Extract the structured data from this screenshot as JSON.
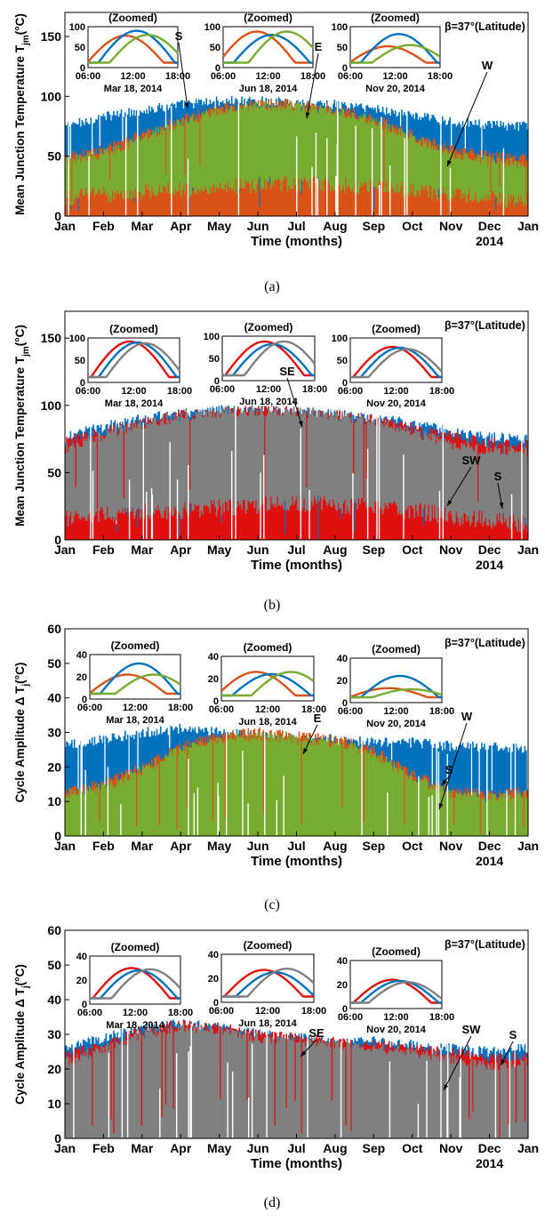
{
  "months": [
    "Jan",
    "Feb",
    "Mar",
    "Apr",
    "May",
    "Jun",
    "Jul",
    "Aug",
    "Sep",
    "Oct",
    "Nov",
    "Dec",
    "Jan"
  ],
  "year_label": "2014",
  "xlabel": "Time (months)",
  "beta_label": "β=37°(Latitude)",
  "zoom_title": "(Zoomed)",
  "zoom_hours": [
    "06:00",
    "12:00",
    "18:00"
  ],
  "zoom_dates": [
    "Mar 18, 2014",
    "Jun 18, 2014",
    "Nov 20, 2014"
  ],
  "colors": {
    "blue": "#0072BD",
    "orange": "#D95319",
    "green": "#77AC30",
    "red": "#E01010",
    "gray": "#808080"
  },
  "chart_data": [
    {
      "panel": "(a)",
      "type": "area",
      "ylabel": "Mean Junction Temperature T",
      "ylabel_sub": "jm",
      "ylabel_unit": "(°C)",
      "ylim": [
        0,
        170
      ],
      "yticks": [
        0,
        50,
        100,
        150
      ],
      "series": [
        {
          "name": "S",
          "color": "blue",
          "upper": [
            75,
            83,
            88,
            93,
            96,
            96,
            95,
            93,
            90,
            84,
            79,
            76,
            75
          ]
        },
        {
          "name": "E",
          "color": "orange",
          "upper": [
            50,
            55,
            68,
            80,
            90,
            94,
            94,
            90,
            82,
            68,
            56,
            50,
            48
          ]
        },
        {
          "name": "W",
          "color": "green",
          "upper": [
            46,
            52,
            65,
            78,
            88,
            92,
            92,
            88,
            80,
            65,
            52,
            46,
            44
          ],
          "lower": [
            15,
            18,
            20,
            22,
            24,
            26,
            27,
            26,
            24,
            22,
            18,
            15,
            12
          ]
        }
      ],
      "labels": [
        "S",
        "E",
        "W"
      ],
      "zoom_ylim": [
        0,
        100
      ],
      "zoom_yticks": [
        0,
        50,
        100
      ],
      "zoom": [
        {
          "date": "Mar 18, 2014",
          "curves": [
            {
              "color": "orange",
              "peak_hour": 11.0,
              "peak": 78
            },
            {
              "color": "blue",
              "peak_hour": 12.5,
              "peak": 90
            },
            {
              "color": "green",
              "peak_hour": 14.0,
              "peak": 80
            }
          ]
        },
        {
          "date": "Jun 18, 2014",
          "curves": [
            {
              "color": "orange",
              "peak_hour": 10.5,
              "peak": 88
            },
            {
              "color": "blue",
              "peak_hour": 12.5,
              "peak": 80
            },
            {
              "color": "green",
              "peak_hour": 14.5,
              "peak": 88
            }
          ]
        },
        {
          "date": "Nov 20, 2014",
          "curves": [
            {
              "color": "orange",
              "peak_hour": 11.0,
              "peak": 52
            },
            {
              "color": "blue",
              "peak_hour": 12.5,
              "peak": 82
            },
            {
              "color": "green",
              "peak_hour": 14.0,
              "peak": 55
            }
          ]
        }
      ]
    },
    {
      "panel": "(b)",
      "type": "area",
      "ylabel": "Mean Junction Temperature T",
      "ylabel_sub": "jm",
      "ylabel_unit": "(°C)",
      "ylim": [
        0,
        170
      ],
      "yticks": [
        0,
        50,
        100,
        150
      ],
      "series": [
        {
          "name": "S",
          "color": "blue",
          "upper": [
            76,
            84,
            90,
            94,
            96,
            96,
            95,
            93,
            90,
            86,
            80,
            76,
            74
          ]
        },
        {
          "name": "SE",
          "color": "red",
          "upper": [
            73,
            80,
            88,
            93,
            95,
            96,
            95,
            93,
            89,
            83,
            77,
            72,
            70
          ]
        },
        {
          "name": "SW",
          "color": "gray",
          "upper": [
            68,
            78,
            86,
            92,
            95,
            96,
            95,
            93,
            88,
            80,
            72,
            67,
            65
          ],
          "lower": [
            15,
            18,
            20,
            22,
            24,
            26,
            27,
            26,
            24,
            22,
            18,
            15,
            12
          ]
        }
      ],
      "labels": [
        "SE",
        "SW",
        "S"
      ],
      "zoom_ylim": [
        0,
        100
      ],
      "zoom_yticks": [
        0,
        50,
        100
      ],
      "zoom": [
        {
          "date": "Mar 18, 2014",
          "curves": [
            {
              "color": "red",
              "peak_hour": 11.5,
              "peak": 92
            },
            {
              "color": "blue",
              "peak_hour": 12.5,
              "peak": 90
            },
            {
              "color": "gray",
              "peak_hour": 13.5,
              "peak": 88
            }
          ]
        },
        {
          "date": "Jun 18, 2014",
          "curves": [
            {
              "color": "red",
              "peak_hour": 11.5,
              "peak": 88
            },
            {
              "color": "blue",
              "peak_hour": 12.5,
              "peak": 82
            },
            {
              "color": "gray",
              "peak_hour": 14.0,
              "peak": 88
            }
          ]
        },
        {
          "date": "Nov 20, 2014",
          "curves": [
            {
              "color": "red",
              "peak_hour": 11.5,
              "peak": 80
            },
            {
              "color": "blue",
              "peak_hour": 12.5,
              "peak": 78
            },
            {
              "color": "gray",
              "peak_hour": 13.5,
              "peak": 75
            }
          ]
        }
      ]
    },
    {
      "panel": "(c)",
      "type": "area",
      "ylabel": "Cycle Amplitude Δ T",
      "ylabel_sub": "j",
      "ylabel_unit": "(°C)",
      "ylim": [
        0,
        60
      ],
      "yticks": [
        0,
        10,
        20,
        30,
        40,
        50,
        60
      ],
      "series": [
        {
          "name": "S",
          "color": "blue",
          "upper": [
            26,
            28,
            30,
            31,
            30,
            29,
            28,
            28,
            27,
            27,
            26,
            26,
            25
          ]
        },
        {
          "name": "E",
          "color": "orange",
          "upper": [
            13,
            15,
            20,
            26,
            29,
            30,
            29,
            28,
            25,
            18,
            13,
            12,
            13
          ]
        },
        {
          "name": "W",
          "color": "green",
          "upper": [
            12,
            14,
            19,
            25,
            28,
            29,
            28,
            27,
            24,
            17,
            12,
            11,
            12
          ]
        }
      ],
      "labels": [
        "E",
        "S",
        "W"
      ],
      "zoom_ylim": [
        0,
        40
      ],
      "zoom_yticks": [
        0,
        20,
        40
      ],
      "zoom": [
        {
          "date": "Mar 18, 2014",
          "curves": [
            {
              "color": "orange",
              "peak_hour": 11.0,
              "peak": 22
            },
            {
              "color": "blue",
              "peak_hour": 12.5,
              "peak": 32
            },
            {
              "color": "green",
              "peak_hour": 14.5,
              "peak": 22
            }
          ]
        },
        {
          "date": "Jun 18, 2014",
          "curves": [
            {
              "color": "orange",
              "peak_hour": 10.5,
              "peak": 26
            },
            {
              "color": "blue",
              "peak_hour": 12.5,
              "peak": 24
            },
            {
              "color": "green",
              "peak_hour": 15.0,
              "peak": 26
            }
          ]
        },
        {
          "date": "Nov 20, 2014",
          "curves": [
            {
              "color": "orange",
              "peak_hour": 11.0,
              "peak": 13
            },
            {
              "color": "blue",
              "peak_hour": 12.5,
              "peak": 24
            },
            {
              "color": "green",
              "peak_hour": 14.0,
              "peak": 12
            }
          ]
        }
      ]
    },
    {
      "panel": "(d)",
      "type": "area",
      "ylabel": "Cycle Amplitude Δ T",
      "ylabel_sub": "j",
      "ylabel_unit": "(°C)",
      "ylim": [
        0,
        60
      ],
      "yticks": [
        0,
        10,
        20,
        30,
        40,
        50,
        60
      ],
      "series": [
        {
          "name": "S",
          "color": "blue",
          "upper": [
            26,
            29,
            32,
            33,
            32,
            30,
            29,
            28,
            28,
            27,
            26,
            25,
            26
          ]
        },
        {
          "name": "SE",
          "color": "red",
          "upper": [
            24,
            27,
            31,
            33,
            32,
            30,
            29,
            28,
            27,
            26,
            25,
            23,
            24
          ]
        },
        {
          "name": "SW",
          "color": "gray",
          "upper": [
            22,
            26,
            30,
            32,
            31,
            29,
            28,
            27,
            26,
            25,
            23,
            21,
            22
          ]
        }
      ],
      "labels": [
        "SE",
        "SW",
        "S"
      ],
      "zoom_ylim": [
        0,
        40
      ],
      "zoom_yticks": [
        0,
        20,
        40
      ],
      "zoom": [
        {
          "date": "Mar 18, 2014",
          "curves": [
            {
              "color": "red",
              "peak_hour": 11.5,
              "peak": 30
            },
            {
              "color": "blue",
              "peak_hour": 12.5,
              "peak": 28
            },
            {
              "color": "gray",
              "peak_hour": 14.0,
              "peak": 29
            }
          ]
        },
        {
          "date": "Jun 18, 2014",
          "curves": [
            {
              "color": "red",
              "peak_hour": 11.5,
              "peak": 27
            },
            {
              "color": "blue",
              "peak_hour": 13.0,
              "peak": 25
            },
            {
              "color": "gray",
              "peak_hour": 14.5,
              "peak": 28
            }
          ]
        },
        {
          "date": "Nov 20, 2014",
          "curves": [
            {
              "color": "red",
              "peak_hour": 11.5,
              "peak": 24
            },
            {
              "color": "blue",
              "peak_hour": 12.5,
              "peak": 23
            },
            {
              "color": "gray",
              "peak_hour": 13.5,
              "peak": 22
            }
          ]
        }
      ]
    }
  ]
}
